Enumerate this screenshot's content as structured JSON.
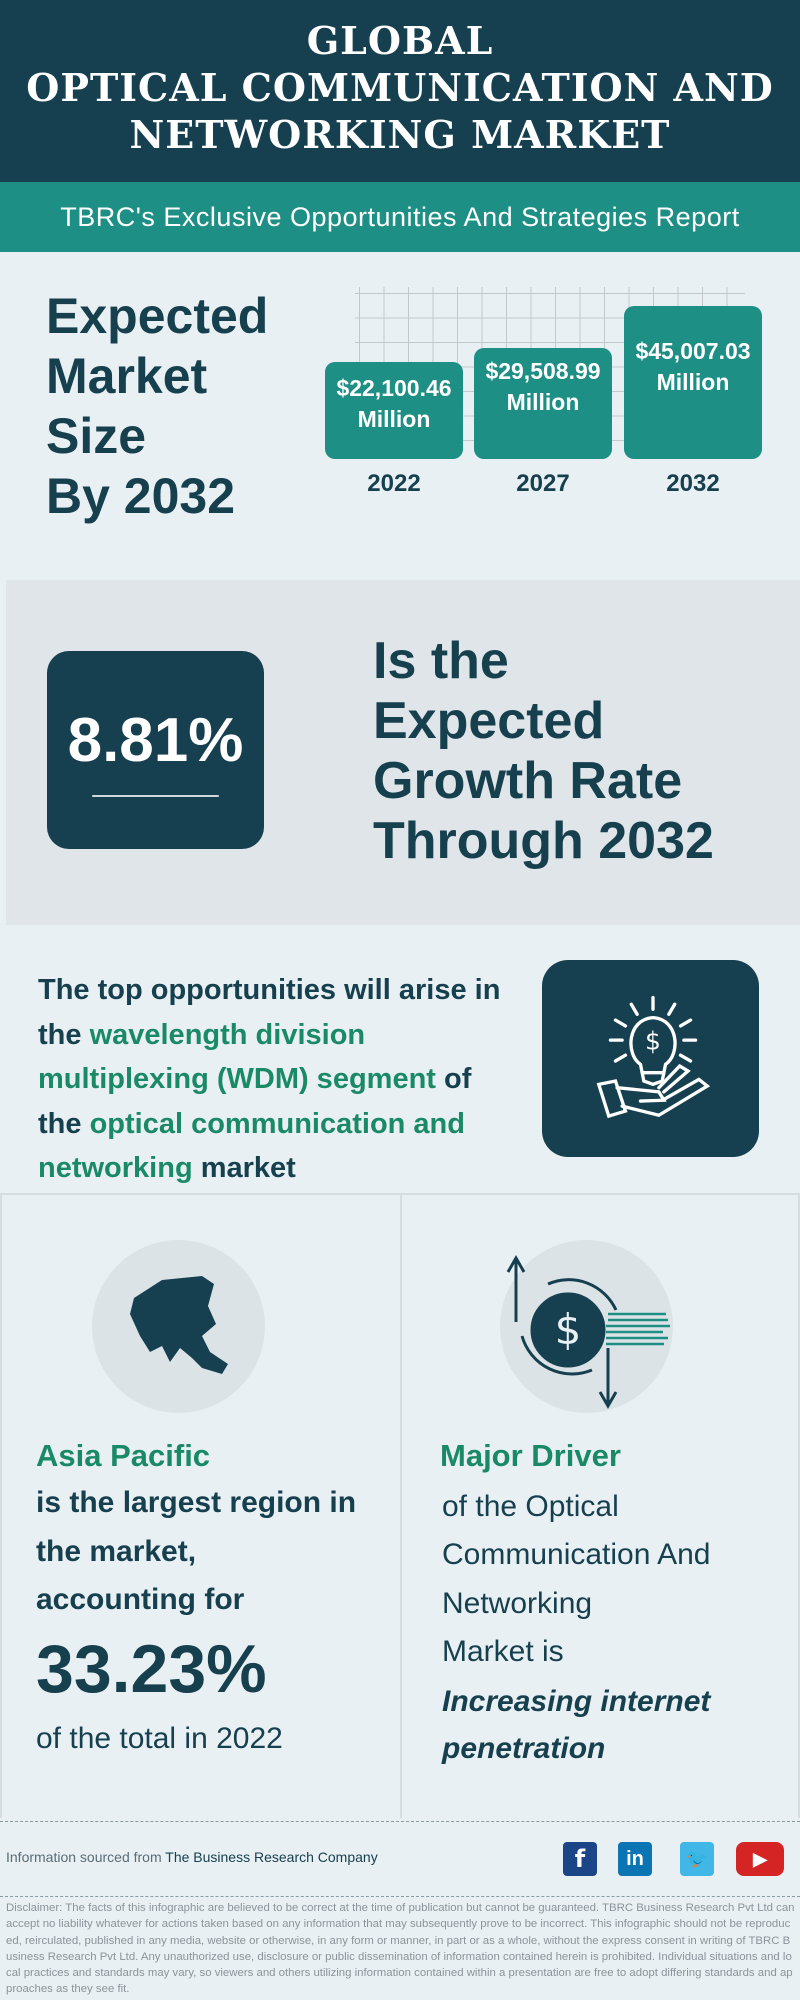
{
  "header": {
    "title_lines": [
      "GLOBAL",
      "OPTICAL COMMUNICATION AND",
      "NETWORKING MARKET"
    ],
    "subtitle": "TBRC's Exclusive Opportunities And Strategies Report"
  },
  "market_size": {
    "heading_lines": [
      "Expected",
      "Market",
      "Size",
      "By 2032"
    ],
    "bars": [
      {
        "year": "2022",
        "value": "$22,100.46",
        "unit": "Million"
      },
      {
        "year": "2027",
        "value": "$29,508.99",
        "unit": "Million"
      },
      {
        "year": "2032",
        "value": "$45,007.03",
        "unit": "Million"
      }
    ]
  },
  "growth": {
    "rate": "8.81%",
    "text_lines": [
      "Is the",
      "Expected",
      "Growth Rate",
      "Through 2032"
    ]
  },
  "opportunity": {
    "p1": "The top opportunities will arise in the ",
    "h1": "wavelength division multiplexing (WDM) segment",
    "p2": " of the ",
    "h2": "optical communication and networking",
    "p3": " market",
    "icon": "lightbulb-dollar-hand-icon"
  },
  "region": {
    "heading": "Asia Pacific",
    "lines": [
      "is the largest region in",
      "the  market,",
      "accounting for"
    ],
    "share": "33.23%",
    "footer": "of the total in 2022",
    "icon": "asia-map-icon"
  },
  "driver": {
    "heading": "Major Driver",
    "lines": [
      "of the Optical",
      "Communication And",
      "Networking",
      "Market is"
    ],
    "highlight_lines": [
      "Increasing internet",
      "penetration"
    ],
    "icon": "dollar-cycle-icon"
  },
  "footer": {
    "source_prefix": "Information sourced from ",
    "source_name": "The Business Research Company",
    "social": [
      "facebook",
      "linkedin",
      "twitter",
      "youtube"
    ],
    "disclaimer": "Disclaimer: The facts of this infographic are believed to be correct at the time of publication but cannot be guaranteed. TBRC Business Research Pvt Ltd can accept no liability whatever for actions taken based on any information that may subsequently prove to be incorrect. This infographic should not be reproduced, reirculated, published in any media, website or otherwise, in any form or manner, in part or as a whole, without the express consent in writing of TBRC Business Research Pvt Ltd. Any unauthorized use, disclosure or public dissemination of information contained herein is prohibited. Individual situations and local practices and standards may vary, so viewers and others utilizing information contained within a presentation are free to adopt differing standards and approaches as they see fit."
  },
  "colors": {
    "dark": "#16404f",
    "teal": "#1e8f85",
    "green": "#1a8a66",
    "background": "#e9f0f3"
  }
}
